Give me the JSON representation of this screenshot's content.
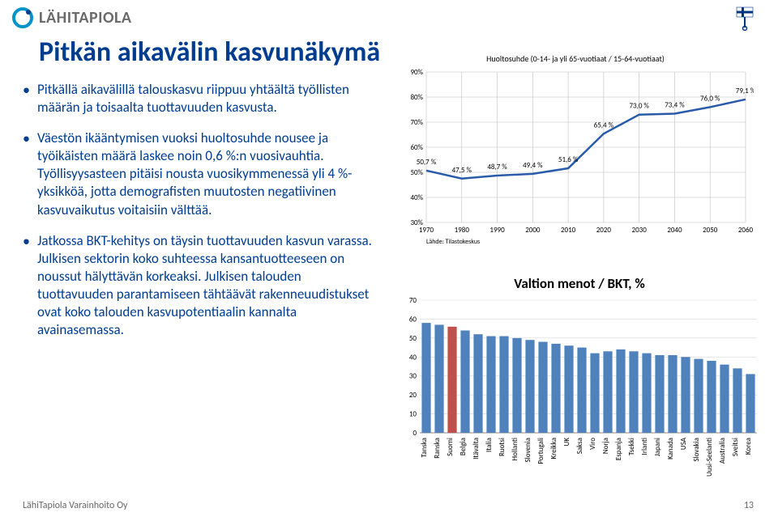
{
  "brand": "LÄHITAPIOLA",
  "title": "Pitkän aikavälin kasvunäkymä",
  "bullets": [
    "Pitkällä aikavälillä talouskasvu riippuu yhtäältä työllisten määrän ja toisaalta tuottavuuden kasvusta.",
    "Väestön ikääntymisen vuoksi huoltosuhde nousee ja työikäisten määrä laskee noin 0,6 %:n vuosivauhtia. Työllisyysasteen pitäisi nousta vuosikymmenessä yli 4 %-yksikköä, jotta demografisten muutosten negatiivinen kasvuvaikutus voitaisiin välttää.",
    "Jatkossa BKT-kehitys on täysin tuottavuuden kasvun varassa. Julkisen sektorin koko suhteessa kansantuotteeseen on noussut hälyttävän korkeaksi. Julkisen talouden tuottavuuden parantamiseen tähtäävät rakenneuudistukset ovat koko talouden kasvupotentiaalin kannalta avainasemassa."
  ],
  "footer": "LähiTapiola Varainhoito Oy",
  "page": "13",
  "chart1": {
    "type": "line",
    "title": "Huoltosuhde (0-14- ja yli 65-vuotiaat / 15-64-vuotiaat)",
    "source": "Lähde: Tilastokeskus",
    "x_years": [
      1970,
      1980,
      1990,
      2000,
      2010,
      2020,
      2030,
      2040,
      2050,
      2060
    ],
    "y_ticks": [
      30,
      40,
      50,
      60,
      70,
      80,
      90
    ],
    "ylim": [
      30,
      90
    ],
    "line_color": "#2a5baa",
    "line_width": 2.5,
    "grid_color": "#bfbfbf",
    "bg_color": "#ffffff",
    "label_fontsize": 9,
    "data": [
      {
        "x": 1970,
        "y": 50.7,
        "label": "50,7 %"
      },
      {
        "x": 1980,
        "y": 47.5,
        "label": "47,5 %"
      },
      {
        "x": 1990,
        "y": 48.7,
        "label": "48,7 %"
      },
      {
        "x": 2000,
        "y": 49.4,
        "label": "49,4 %"
      },
      {
        "x": 2010,
        "y": 51.6,
        "label": "51,6 %"
      },
      {
        "x": 2020,
        "y": 65.4,
        "label": "65,4 %"
      },
      {
        "x": 2030,
        "y": 73.0,
        "label": "73,0 %"
      },
      {
        "x": 2040,
        "y": 73.4,
        "label": "73,4 %"
      },
      {
        "x": 2050,
        "y": 76.0,
        "label": "76,0 %"
      },
      {
        "x": 2060,
        "y": 79.1,
        "label": "79,1 %"
      }
    ]
  },
  "chart2": {
    "type": "bar",
    "title": "Valtion menot / BKT, %",
    "y_ticks": [
      0,
      10,
      20,
      30,
      40,
      50,
      60,
      70
    ],
    "ylim": [
      0,
      70
    ],
    "bar_color": "#4f81bd",
    "highlight_color": "#c0504d",
    "grid_color": "#d9d9d9",
    "label_fontsize": 9,
    "bar_width": 0.7,
    "categories": [
      "Tanska",
      "Ranska",
      "Suomi",
      "Belgia",
      "Itävalta",
      "Italia",
      "Ruotsi",
      "Hollanti",
      "Slovenia",
      "Portugali",
      "Kreikka",
      "UK",
      "Saksa",
      "Viro",
      "Norja",
      "Espanja",
      "Tsekki",
      "Irlanti",
      "Japani",
      "Kanada",
      "USA",
      "Slovakia",
      "Uusi-Seelanti",
      "Australia",
      "Sveitsi",
      "Korea"
    ],
    "values": [
      58,
      57,
      56,
      54,
      52,
      51,
      51,
      50,
      49,
      48,
      47,
      46,
      45,
      42,
      43,
      44,
      43,
      42,
      41,
      41,
      40,
      39,
      38,
      36,
      34,
      31
    ],
    "highlight_index": 2
  }
}
